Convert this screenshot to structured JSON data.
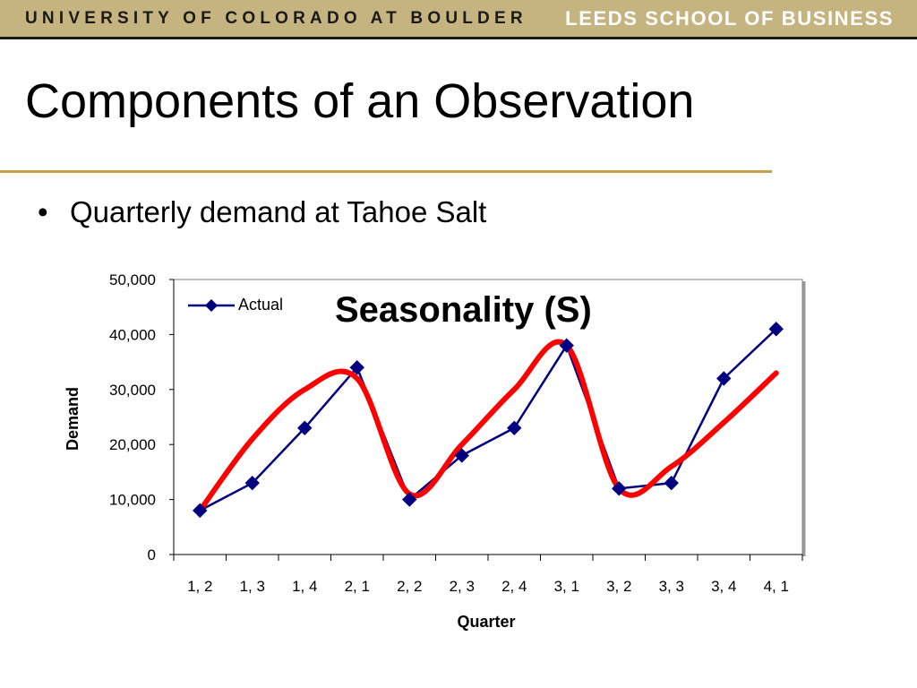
{
  "header": {
    "left_text": "UNIVERSITY OF COLORADO AT BOULDER",
    "right_text": "LEEDS SCHOOL OF BUSINESS"
  },
  "slide": {
    "title": "Components of an Observation",
    "bullet": "Quarterly demand at Tahoe Salt"
  },
  "overlay_label": "Seasonality (S)",
  "colors": {
    "banner": "#c5b47f",
    "rule": "#c5a24a",
    "series": "#000080",
    "trend": "#ff0000"
  },
  "chart_data": {
    "type": "line",
    "categories": [
      "1, 2",
      "1, 3",
      "1, 4",
      "2, 1",
      "2, 2",
      "2, 3",
      "2, 4",
      "3, 1",
      "3, 2",
      "3, 3",
      "3, 4",
      "4, 1"
    ],
    "series": [
      {
        "name": "Actual",
        "values": [
          8000,
          13000,
          23000,
          34000,
          10000,
          18000,
          23000,
          38000,
          12000,
          13000,
          32000,
          41000
        ]
      }
    ],
    "overlay_curve": [
      8000,
      21000,
      30000,
      32000,
      11000,
      20000,
      30000,
      38000,
      12000,
      16000,
      24000,
      33000
    ],
    "xlabel": "Quarter",
    "ylabel": "Demand",
    "ylim": [
      0,
      50000
    ],
    "yticks": [
      "0",
      "10,000",
      "20,000",
      "30,000",
      "40,000",
      "50,000"
    ],
    "legend_position": "top-left"
  }
}
